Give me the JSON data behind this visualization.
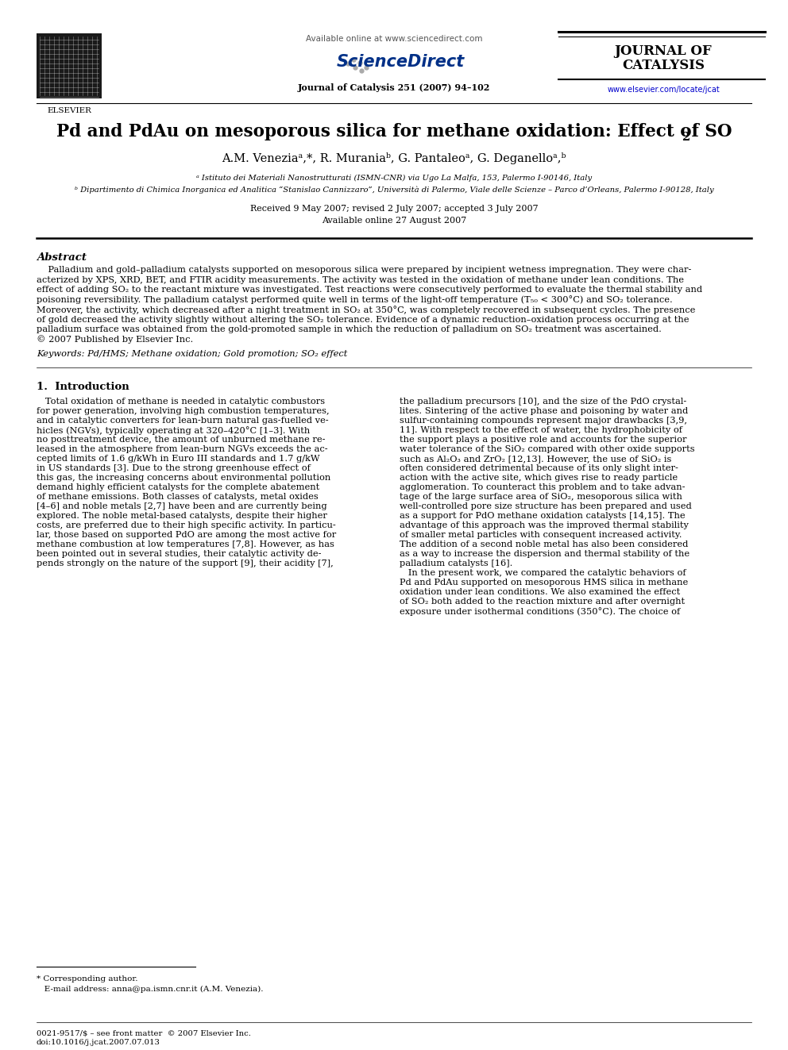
{
  "bg_color": "#ffffff",
  "available_online_header": "Available online at www.sciencedirect.com",
  "journal_name1": "JOURNAL OF",
  "journal_name2": "CATALYSIS",
  "journal_ref": "Journal of Catalysis 251 (2007) 94–102",
  "website": "www.elsevier.com/locate/jcat",
  "elsevier_text": "ELSEVIER",
  "title_main": "Pd and PdAu on mesoporous silica for methane oxidation: Effect of SO",
  "title_sub": "2",
  "author_line": "A.M. Veneziaᵃ,*, R. Muraniaᵇ, G. Pantaleoᵃ, G. Deganelloᵃ,ᵇ",
  "affil_a": "ᵃ Istituto dei Materiali Nanostrutturati (ISMN-CNR) via Ugo La Malfa, 153, Palermo I-90146, Italy",
  "affil_b": "ᵇ Dipartimento di Chimica Inorganica ed Analitica “Stanislao Cannizzaro”, Università di Palermo, Viale delle Scienze – Parco d’Orleans, Palermo I-90128, Italy",
  "received_line": "Received 9 May 2007; revised 2 July 2007; accepted 3 July 2007",
  "available_online_art": "Available online 27 August 2007",
  "abstract_title": "Abstract",
  "abstract_lines": [
    "    Palladium and gold–palladium catalysts supported on mesoporous silica were prepared by incipient wetness impregnation. They were char-",
    "acterized by XPS, XRD, BET, and FTIR acidity measurements. The activity was tested in the oxidation of methane under lean conditions. The",
    "effect of adding SO₂ to the reactant mixture was investigated. Test reactions were consecutively performed to evaluate the thermal stability and",
    "poisoning reversibility. The palladium catalyst performed quite well in terms of the light-off temperature (T₅₀ < 300°C) and SO₂ tolerance.",
    "Moreover, the activity, which decreased after a night treatment in SO₂ at 350°C, was completely recovered in subsequent cycles. The presence",
    "of gold decreased the activity slightly without altering the SO₂ tolerance. Evidence of a dynamic reduction–oxidation process occurring at the",
    "palladium surface was obtained from the gold-promoted sample in which the reduction of palladium on SO₂ treatment was ascertained.",
    "© 2007 Published by Elsevier Inc."
  ],
  "keywords_line": "Keywords: Pd/HMS; Methane oxidation; Gold promotion; SO₂ effect",
  "intro_title": "1.  Introduction",
  "intro_col1_lines": [
    "   Total oxidation of methane is needed in catalytic combustors",
    "for power generation, involving high combustion temperatures,",
    "and in catalytic converters for lean-burn natural gas-fuelled ve-",
    "hicles (NGVs), typically operating at 320–420°C [1–3]. With",
    "no posttreatment device, the amount of unburned methane re-",
    "leased in the atmosphere from lean-burn NGVs exceeds the ac-",
    "cepted limits of 1.6 g/kWh in Euro III standards and 1.7 g/kW",
    "in US standards [3]. Due to the strong greenhouse effect of",
    "this gas, the increasing concerns about environmental pollution",
    "demand highly efficient catalysts for the complete abatement",
    "of methane emissions. Both classes of catalysts, metal oxides",
    "[4–6] and noble metals [2,7] have been and are currently being",
    "explored. The noble metal-based catalysts, despite their higher",
    "costs, are preferred due to their high specific activity. In particu-",
    "lar, those based on supported PdO are among the most active for",
    "methane combustion at low temperatures [7,8]. However, as has",
    "been pointed out in several studies, their catalytic activity de-",
    "pends strongly on the nature of the support [9], their acidity [7],"
  ],
  "intro_col2_lines": [
    "the palladium precursors [10], and the size of the PdO crystal-",
    "lites. Sintering of the active phase and poisoning by water and",
    "sulfur-containing compounds represent major drawbacks [3,9,",
    "11]. With respect to the effect of water, the hydrophobicity of",
    "the support plays a positive role and accounts for the superior",
    "water tolerance of the SiO₂ compared with other oxide supports",
    "such as Al₂O₃ and ZrO₂ [12,13]. However, the use of SiO₂ is",
    "often considered detrimental because of its only slight inter-",
    "action with the active site, which gives rise to ready particle",
    "agglomeration. To counteract this problem and to take advan-",
    "tage of the large surface area of SiO₂, mesoporous silica with",
    "well-controlled pore size structure has been prepared and used",
    "as a support for PdO methane oxidation catalysts [14,15]. The",
    "advantage of this approach was the improved thermal stability",
    "of smaller metal particles with consequent increased activity.",
    "The addition of a second noble metal has also been considered",
    "as a way to increase the dispersion and thermal stability of the",
    "palladium catalysts [16].",
    "   In the present work, we compared the catalytic behaviors of",
    "Pd and PdAu supported on mesoporous HMS silica in methane",
    "oxidation under lean conditions. We also examined the effect",
    "of SO₂ both added to the reaction mixture and after overnight",
    "exposure under isothermal conditions (350°C). The choice of"
  ],
  "footnote_star": "* Corresponding author.",
  "footnote_email": "   E-mail address: anna@pa.ismn.cnr.it (A.M. Venezia).",
  "footnote_issn": "0021-9517/$ – see front matter  © 2007 Elsevier Inc.",
  "footnote_doi": "doi:10.1016/j.jcat.2007.07.013"
}
